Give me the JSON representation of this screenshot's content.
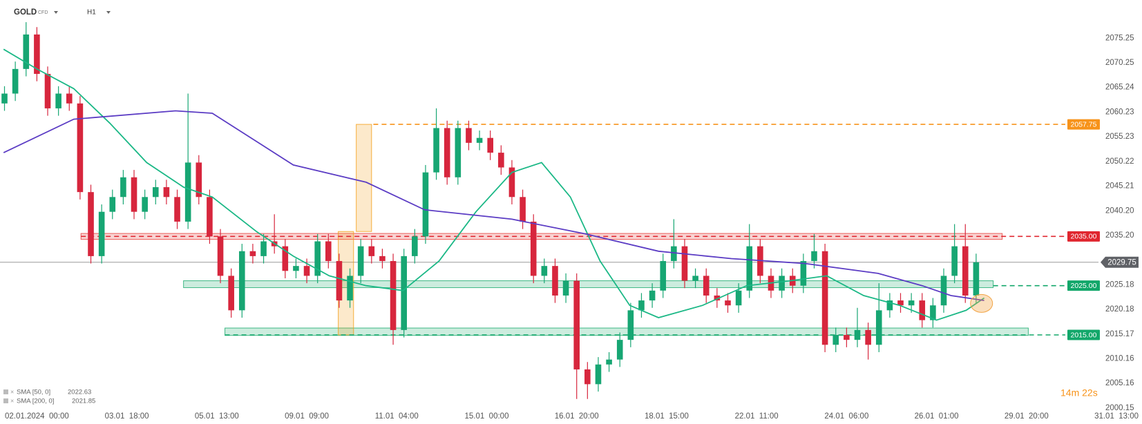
{
  "header": {
    "symbol": "GOLD",
    "instrument": "CFD",
    "interval": "H1"
  },
  "timer": "14m 22s",
  "chart_data": {
    "type": "candlestick",
    "xlim": [
      -0.41,
      11.8
    ],
    "ylim": [
      2000,
      2083
    ],
    "xticks": [
      {
        "value": 0,
        "label": "02.01.2024  00:00"
      },
      {
        "value": 1,
        "label": "03.01  18:00"
      },
      {
        "value": 2,
        "label": "05.01  13:00"
      },
      {
        "value": 3,
        "label": "09.01  09:00"
      },
      {
        "value": 4,
        "label": "11.01  04:00"
      },
      {
        "value": 5,
        "label": "15.01  00:00"
      },
      {
        "value": 6,
        "label": "16.01  20:00"
      },
      {
        "value": 7,
        "label": "18.01  15:00"
      },
      {
        "value": 8,
        "label": "22.01  11:00"
      },
      {
        "value": 9,
        "label": "24.01  06:00"
      },
      {
        "value": 10,
        "label": "26.01  01:00"
      },
      {
        "value": 11,
        "label": "29.01  20:00"
      },
      {
        "value": 12,
        "label": "31.01  13:00"
      }
    ],
    "yticks": [
      2075.25,
      2070.25,
      2065.24,
      2060.23,
      2055.23,
      2050.22,
      2045.21,
      {
        "value": 2040.2,
        "label": "2040.20"
      },
      {
        "value": 2035.2,
        "label": "2035.20"
      },
      2025.18,
      2020.18,
      2015.17,
      2010.16,
      2005.16,
      2000.15
    ],
    "up_color": "#17a673",
    "down_color": "#d7263d",
    "x": [
      -0.36,
      -0.24,
      -0.12,
      0,
      0.12,
      0.24,
      0.36,
      0.48,
      0.6,
      0.72,
      0.84,
      0.96,
      1.08,
      1.2,
      1.32,
      1.44,
      1.56,
      1.68,
      1.8,
      1.92,
      2.04,
      2.16,
      2.28,
      2.4,
      2.52,
      2.64,
      2.76,
      2.88,
      3,
      3.12,
      3.24,
      3.36,
      3.48,
      3.6,
      3.72,
      3.84,
      3.96,
      4.08,
      4.2,
      4.32,
      4.44,
      4.56,
      4.68,
      4.8,
      4.92,
      5.04,
      5.16,
      5.28,
      5.4,
      5.52,
      5.64,
      5.76,
      5.88,
      6,
      6.12,
      6.24,
      6.36,
      6.48,
      6.6,
      6.72,
      6.84,
      6.96,
      7.08,
      7.2,
      7.32,
      7.44,
      7.56,
      7.68,
      7.8,
      7.92,
      8.04,
      8.16,
      8.28,
      8.4,
      8.52,
      8.64,
      8.76,
      8.88,
      9,
      9.12,
      9.24,
      9.36,
      9.48,
      9.6,
      9.72,
      9.84,
      9.96,
      10.08,
      10.2,
      10.32,
      10.44
    ],
    "candles": [
      [
        2062,
        2065.5,
        2060.5,
        2064
      ],
      [
        2064,
        2070.5,
        2062.5,
        2069
      ],
      [
        2069,
        2078.5,
        2067.5,
        2076
      ],
      [
        2076,
        2077.5,
        2066.5,
        2068
      ],
      [
        2068,
        2069.5,
        2059.5,
        2061
      ],
      [
        2061,
        2065.5,
        2059.5,
        2064
      ],
      [
        2064,
        2065.5,
        2060.5,
        2062
      ],
      [
        2062,
        2063.5,
        2042.5,
        2044
      ],
      [
        2044,
        2045.5,
        2029.5,
        2031
      ],
      [
        2031,
        2041.5,
        2029.5,
        2040
      ],
      [
        2040,
        2044.5,
        2038.5,
        2043
      ],
      [
        2043,
        2048.5,
        2041.5,
        2047
      ],
      [
        2047,
        2048.5,
        2038.5,
        2040
      ],
      [
        2040,
        2044.5,
        2038.5,
        2043
      ],
      [
        2043,
        2046.5,
        2041.5,
        2045
      ],
      [
        2045,
        2046.5,
        2041.5,
        2043
      ],
      [
        2043,
        2044.5,
        2036.5,
        2038
      ],
      [
        2038,
        2064,
        2036.5,
        2050
      ],
      [
        2050,
        2051.5,
        2041.5,
        2043
      ],
      [
        2043,
        2044.5,
        2033.5,
        2035
      ],
      [
        2035,
        2036.5,
        2025.5,
        2027
      ],
      [
        2027,
        2028.5,
        2018.5,
        2020
      ],
      [
        2020,
        2033.5,
        2018.5,
        2032
      ],
      [
        2032,
        2033.5,
        2029.5,
        2031
      ],
      [
        2031,
        2035.5,
        2029.5,
        2034
      ],
      [
        2034,
        2039.5,
        2031.5,
        2033
      ],
      [
        2033,
        2034.5,
        2026.5,
        2028
      ],
      [
        2028,
        2030.5,
        2026.5,
        2029
      ],
      [
        2029,
        2030.5,
        2025.5,
        2027
      ],
      [
        2027,
        2035.5,
        2025.5,
        2034
      ],
      [
        2034,
        2035.5,
        2028.5,
        2030
      ],
      [
        2030,
        2031.5,
        2020.5,
        2022
      ],
      [
        2022,
        2028.5,
        2020.5,
        2027
      ],
      [
        2027,
        2034.5,
        2025.5,
        2033
      ],
      [
        2033,
        2034.5,
        2029.5,
        2031
      ],
      [
        2031,
        2032.5,
        2028.5,
        2030
      ],
      [
        2030,
        2031.5,
        2013,
        2016
      ],
      [
        2016,
        2032.5,
        2014.5,
        2031
      ],
      [
        2031,
        2036.5,
        2029.5,
        2035
      ],
      [
        2035,
        2049.5,
        2033.5,
        2048
      ],
      [
        2048,
        2061,
        2046.5,
        2057
      ],
      [
        2057,
        2058.5,
        2045.5,
        2047
      ],
      [
        2047,
        2058.5,
        2045.5,
        2057
      ],
      [
        2057,
        2058.5,
        2052.5,
        2054
      ],
      [
        2054,
        2056.5,
        2052.5,
        2055
      ],
      [
        2055,
        2056.5,
        2050.5,
        2052
      ],
      [
        2052,
        2053.5,
        2047.5,
        2049
      ],
      [
        2049,
        2050.5,
        2041.5,
        2043
      ],
      [
        2043,
        2044.5,
        2036.5,
        2038
      ],
      [
        2038,
        2039.5,
        2025.5,
        2027
      ],
      [
        2027,
        2030.5,
        2025.5,
        2029
      ],
      [
        2029,
        2030.5,
        2021.5,
        2023
      ],
      [
        2023,
        2027.5,
        2021.5,
        2026
      ],
      [
        2026,
        2027.5,
        2002,
        2008
      ],
      [
        2008,
        2009.5,
        2002,
        2005
      ],
      [
        2005,
        2010.5,
        2003.5,
        2009
      ],
      [
        2009,
        2011.5,
        2007.5,
        2010
      ],
      [
        2010,
        2015.5,
        2008.5,
        2014
      ],
      [
        2014,
        2021.5,
        2012.5,
        2020
      ],
      [
        2020,
        2023.5,
        2018.5,
        2022
      ],
      [
        2022,
        2025.5,
        2020.5,
        2024
      ],
      [
        2024,
        2031.5,
        2022.5,
        2030
      ],
      [
        2030,
        2038.5,
        2028.5,
        2033
      ],
      [
        2033,
        2034.5,
        2024.5,
        2026
      ],
      [
        2026,
        2028.5,
        2024.5,
        2027
      ],
      [
        2027,
        2028.5,
        2021.5,
        2023
      ],
      [
        2023,
        2024.5,
        2020.5,
        2022
      ],
      [
        2022,
        2023.5,
        2019.5,
        2021
      ],
      [
        2021,
        2025.5,
        2019.5,
        2024
      ],
      [
        2024,
        2037.5,
        2022.5,
        2033
      ],
      [
        2033,
        2034.5,
        2025.5,
        2027
      ],
      [
        2027,
        2028.5,
        2022.5,
        2024
      ],
      [
        2024,
        2028.5,
        2022.5,
        2027
      ],
      [
        2027,
        2028.5,
        2023.5,
        2025
      ],
      [
        2025,
        2031.5,
        2023.5,
        2030
      ],
      [
        2030,
        2035.5,
        2028.5,
        2032
      ],
      [
        2032,
        2033.5,
        2011.5,
        2013
      ],
      [
        2013,
        2016.5,
        2011.5,
        2015
      ],
      [
        2015,
        2016.5,
        2012.5,
        2014
      ],
      [
        2014,
        2020.5,
        2012.5,
        2016
      ],
      [
        2016,
        2017.5,
        2010,
        2013
      ],
      [
        2013,
        2025.5,
        2011.5,
        2020
      ],
      [
        2020,
        2023.5,
        2018.5,
        2022
      ],
      [
        2022,
        2023.5,
        2019.5,
        2021
      ],
      [
        2021,
        2023.5,
        2019.5,
        2022
      ],
      [
        2022,
        2023.5,
        2016.5,
        2018
      ],
      [
        2018,
        2022.5,
        2016.5,
        2021
      ],
      [
        2021,
        2028.5,
        2019.5,
        2027
      ],
      [
        2027,
        2037.5,
        2025.5,
        2033
      ],
      [
        2033,
        2037.5,
        2021.5,
        2023
      ],
      [
        2023,
        2031.5,
        2021.5,
        2029.75
      ]
    ],
    "series": [
      {
        "name": "SMA [50, 0]",
        "legend_value": 2022.63,
        "color": "#1bb886",
        "x": [
          -0.37,
          0,
          0.41,
          0.81,
          1.22,
          1.63,
          1.95,
          2.44,
          2.85,
          3.25,
          3.66,
          4.07,
          4.47,
          4.88,
          5.28,
          5.61,
          5.93,
          6.26,
          6.59,
          6.91,
          7.4,
          7.89,
          8.37,
          8.78,
          9.19,
          9.59,
          10,
          10.33,
          10.53
        ],
        "values": [
          2073,
          2069,
          2065,
          2058,
          2050,
          2045,
          2043,
          2036,
          2031,
          2027,
          2025,
          2024,
          2030,
          2040,
          2048,
          2050,
          2043,
          2030,
          2021,
          2018.5,
          2021,
          2025,
          2026,
          2027,
          2023,
          2021,
          2018,
          2020,
          2022.5
        ]
      },
      {
        "name": "SMA [200, 0]",
        "legend_value": 2021.85,
        "color": "#5b3cc4",
        "x": [
          -0.37,
          0.41,
          1.54,
          1.95,
          2.85,
          3.66,
          4.31,
          5.28,
          6.1,
          6.91,
          7.72,
          8.54,
          9.35,
          9.84,
          10.16,
          10.53
        ],
        "values": [
          2052,
          2058.8,
          2060.5,
          2060,
          2049.5,
          2046,
          2040.4,
          2038.5,
          2035.5,
          2032,
          2030.5,
          2029.5,
          2027.5,
          2025,
          2023,
          2022
        ]
      }
    ],
    "current_price": 2029.75,
    "levels": [
      {
        "value": 2057.75,
        "label": "2057.75",
        "color": "#f7931a",
        "x_start": 3.74
      },
      {
        "value": 2035,
        "label": "2035.00",
        "color": "#e0262f",
        "x_start": 0.49
      },
      {
        "value": 2025,
        "label": "2025.00",
        "color": "#12a76a",
        "x_start": 10.63
      },
      {
        "value": 2015,
        "label": "2015.00",
        "color": "#12a76a",
        "x_start": 2.09
      }
    ],
    "zones": [
      {
        "x": [
          0.49,
          10.73
        ],
        "y": [
          2034.4,
          2035.6
        ],
        "color": "#e53935"
      },
      {
        "x": [
          1.63,
          10.63
        ],
        "y": [
          2024.6,
          2026
        ],
        "color": "#16a96b"
      },
      {
        "x": [
          2.09,
          11.02
        ],
        "y": [
          2014.9,
          2016.4
        ],
        "color": "#16a96b"
      },
      {
        "x": [
          3.55,
          3.72
        ],
        "y": [
          2036,
          2057.75
        ],
        "color": "#f39c12"
      },
      {
        "x": [
          3.35,
          3.52
        ],
        "y": [
          2015,
          2036
        ],
        "color": "#f39c12"
      }
    ],
    "marker": {
      "x": 10.5,
      "y": 2021.4,
      "color": "#f2a444"
    }
  }
}
